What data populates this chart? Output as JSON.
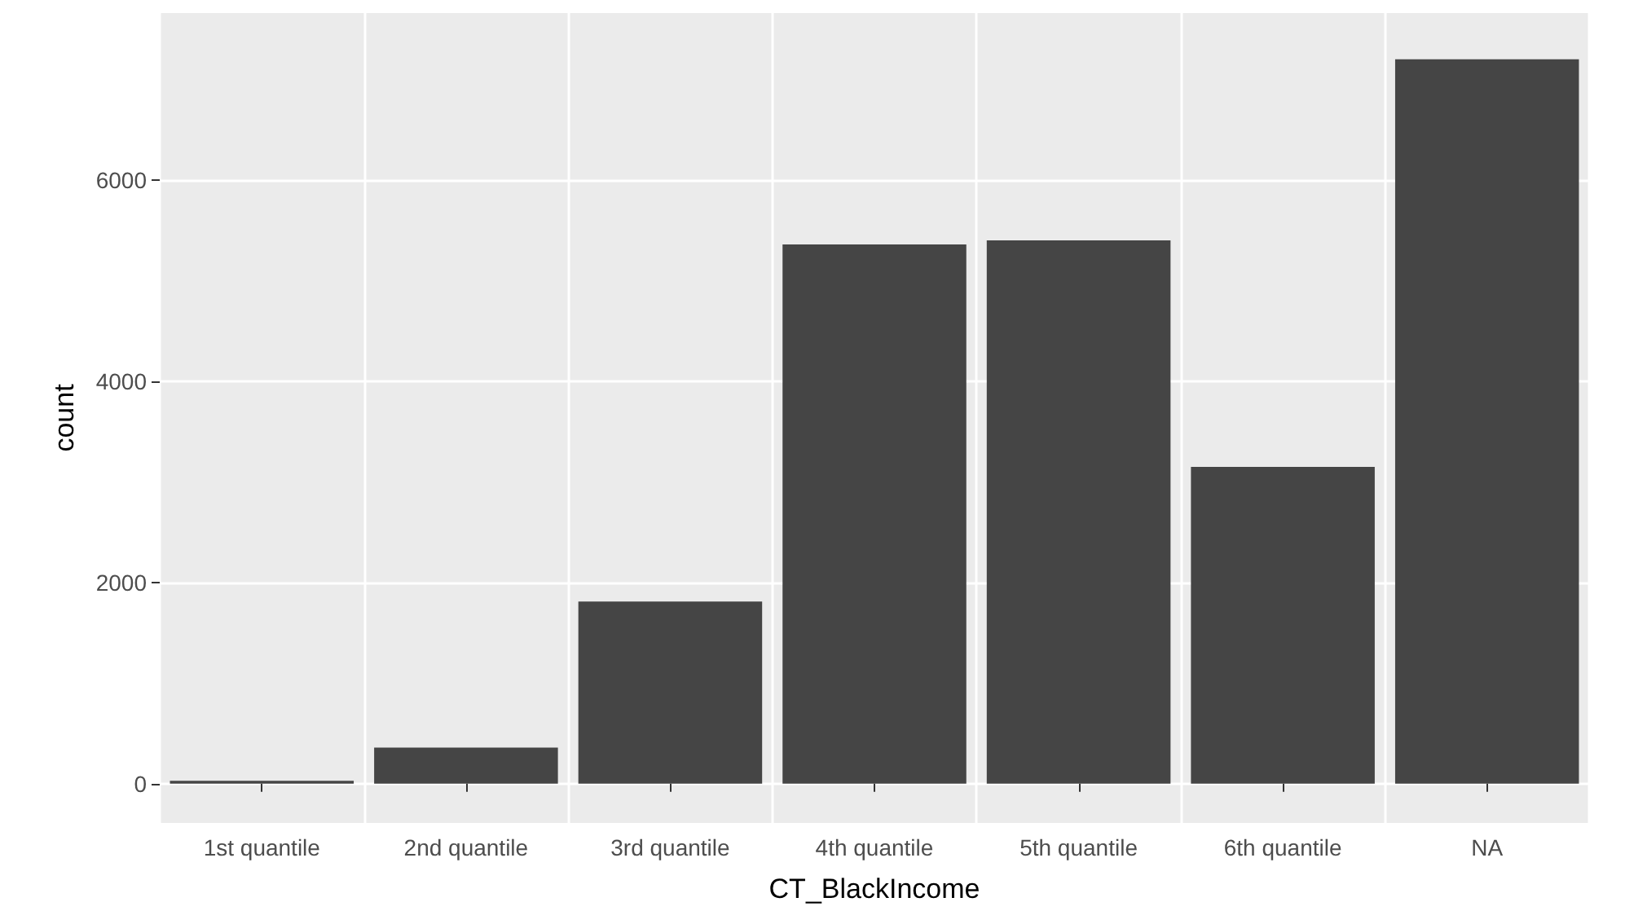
{
  "chart_data": {
    "type": "bar",
    "xlabel": "CT_BlackIncome",
    "ylabel": "count",
    "categories": [
      "1st quantile",
      "2nd quantile",
      "3rd quantile",
      "4th quantile",
      "5th quantile",
      "6th quantile",
      "NA"
    ],
    "values": [
      30,
      360,
      1810,
      5360,
      5400,
      3150,
      7200
    ],
    "color": "#454545",
    "ylim": [
      -390,
      7660
    ],
    "yticks": [
      0,
      2000,
      4000,
      6000
    ],
    "grid": true
  }
}
